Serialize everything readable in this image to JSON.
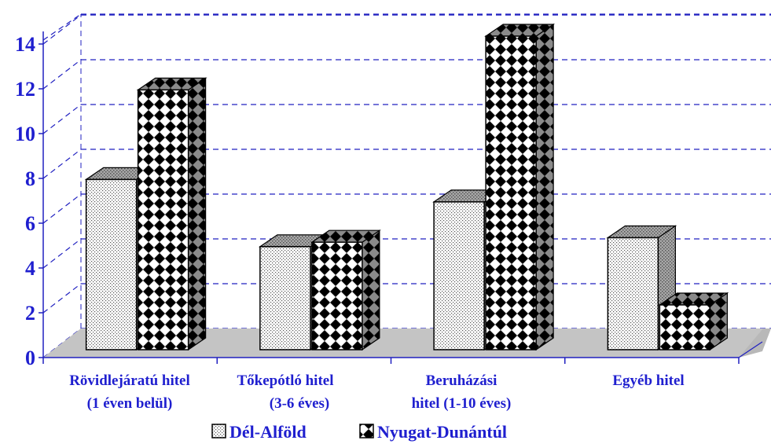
{
  "chart_data": {
    "type": "bar",
    "title": "",
    "xlabel": "",
    "ylabel": "",
    "ylim": [
      0,
      14
    ],
    "y_ticks": [
      0,
      2,
      4,
      6,
      8,
      10,
      12,
      14
    ],
    "y_tick_labels": [
      "0",
      "2",
      "4",
      "6",
      "8",
      "10",
      "12",
      "14"
    ],
    "grid": true,
    "legend_position": "bottom",
    "categories": [
      "Rövidlejáratú hitel (1 éven belül)",
      "Tőkepótló hitel (3-6 éves)",
      "Beruházási hitel (1-10 éves)",
      "Egyéb hitel"
    ],
    "category_label_lines": [
      [
        "Rövidlejáratú hitel",
        "(1 éven belül)"
      ],
      [
        "Tőkepótló hitel",
        "(3-6 éves)"
      ],
      [
        "Beruházási",
        "hitel     (1-10 éves)"
      ],
      [
        "Egyéb hitel"
      ]
    ],
    "series": [
      {
        "name": "Dél-Alföld",
        "values": [
          7.6,
          4.6,
          6.6,
          5.0
        ]
      },
      {
        "name": "Nyugat-Dunántúl",
        "values": [
          11.6,
          4.8,
          14.0,
          2.0
        ]
      }
    ],
    "colors": {
      "axis_text": "#1f1fcf",
      "grid": "#2020c0",
      "floor": "#b8b8b8",
      "bar_outline": "#000000"
    }
  }
}
